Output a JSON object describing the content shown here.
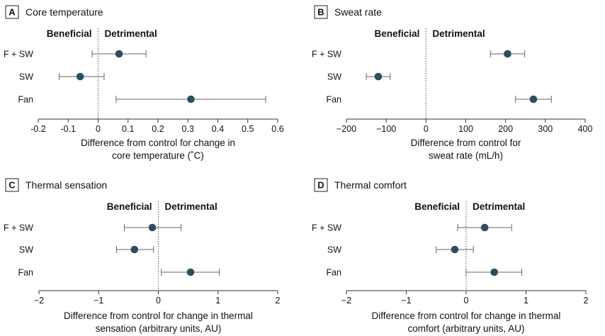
{
  "figure": {
    "beneficial_label": "Beneficial",
    "detrimental_label": "Detrimental"
  },
  "chart_data": [
    {
      "type": "scatter",
      "subtype": "forest-plot",
      "panel": "A",
      "title": "Core temperature",
      "xlabel": [
        "Difference from control for change in",
        "core temperature (˚C)"
      ],
      "xlim": [
        -0.2,
        0.6
      ],
      "xticks": [
        -0.2,
        -0.1,
        0,
        0.1,
        0.2,
        0.3,
        0.4,
        0.5,
        0.6
      ],
      "xtick_labels": [
        "-0.2",
        "-0.1",
        "0",
        "0.1",
        "0.2",
        "0.3",
        "0.4",
        "0.5",
        "0.6"
      ],
      "categories": [
        "F + SW",
        "SW",
        "Fan"
      ],
      "values": [
        0.07,
        -0.06,
        0.31
      ],
      "ci_low": [
        -0.02,
        -0.13,
        0.06
      ],
      "ci_high": [
        0.16,
        0.02,
        0.56
      ]
    },
    {
      "type": "scatter",
      "subtype": "forest-plot",
      "panel": "B",
      "title": "Sweat rate",
      "xlabel": [
        "Difference from control for",
        "sweat rate (mL/h)"
      ],
      "xlim": [
        -200,
        400
      ],
      "xticks": [
        -200,
        -100,
        0,
        100,
        200,
        300,
        400
      ],
      "xtick_labels": [
        "−200",
        "−100",
        "0",
        "100",
        "200",
        "300",
        "400"
      ],
      "categories": [
        "F + SW",
        "SW",
        "Fan"
      ],
      "values": [
        205,
        -120,
        270
      ],
      "ci_low": [
        162,
        -150,
        225
      ],
      "ci_high": [
        248,
        -90,
        315
      ]
    },
    {
      "type": "scatter",
      "subtype": "forest-plot",
      "panel": "C",
      "title": "Thermal sensation",
      "xlabel": [
        "Difference from control for change in thermal",
        "sensation (arbitrary units, AU)"
      ],
      "xlim": [
        -2,
        2
      ],
      "xticks": [
        -2,
        -1,
        0,
        1,
        2
      ],
      "xtick_labels": [
        "−2",
        "−1",
        "0",
        "1",
        "2"
      ],
      "categories": [
        "F + SW",
        "SW",
        "Fan"
      ],
      "values": [
        -0.1,
        -0.4,
        0.54
      ],
      "ci_low": [
        -0.57,
        -0.7,
        0.05
      ],
      "ci_high": [
        0.38,
        -0.08,
        1.02
      ]
    },
    {
      "type": "scatter",
      "subtype": "forest-plot",
      "panel": "D",
      "title": "Thermal comfort",
      "xlabel": [
        "Difference from control for change in thermal",
        "comfort (arbitrary units, AU)"
      ],
      "xlim": [
        -2,
        2
      ],
      "xticks": [
        -2,
        -1,
        0,
        1,
        2
      ],
      "xtick_labels": [
        "−2",
        "−1",
        "0",
        "1",
        "2"
      ],
      "categories": [
        "F + SW",
        "SW",
        "Fan"
      ],
      "values": [
        0.31,
        -0.19,
        0.47
      ],
      "ci_low": [
        -0.14,
        -0.5,
        0.0
      ],
      "ci_high": [
        0.76,
        0.12,
        0.93
      ]
    }
  ]
}
